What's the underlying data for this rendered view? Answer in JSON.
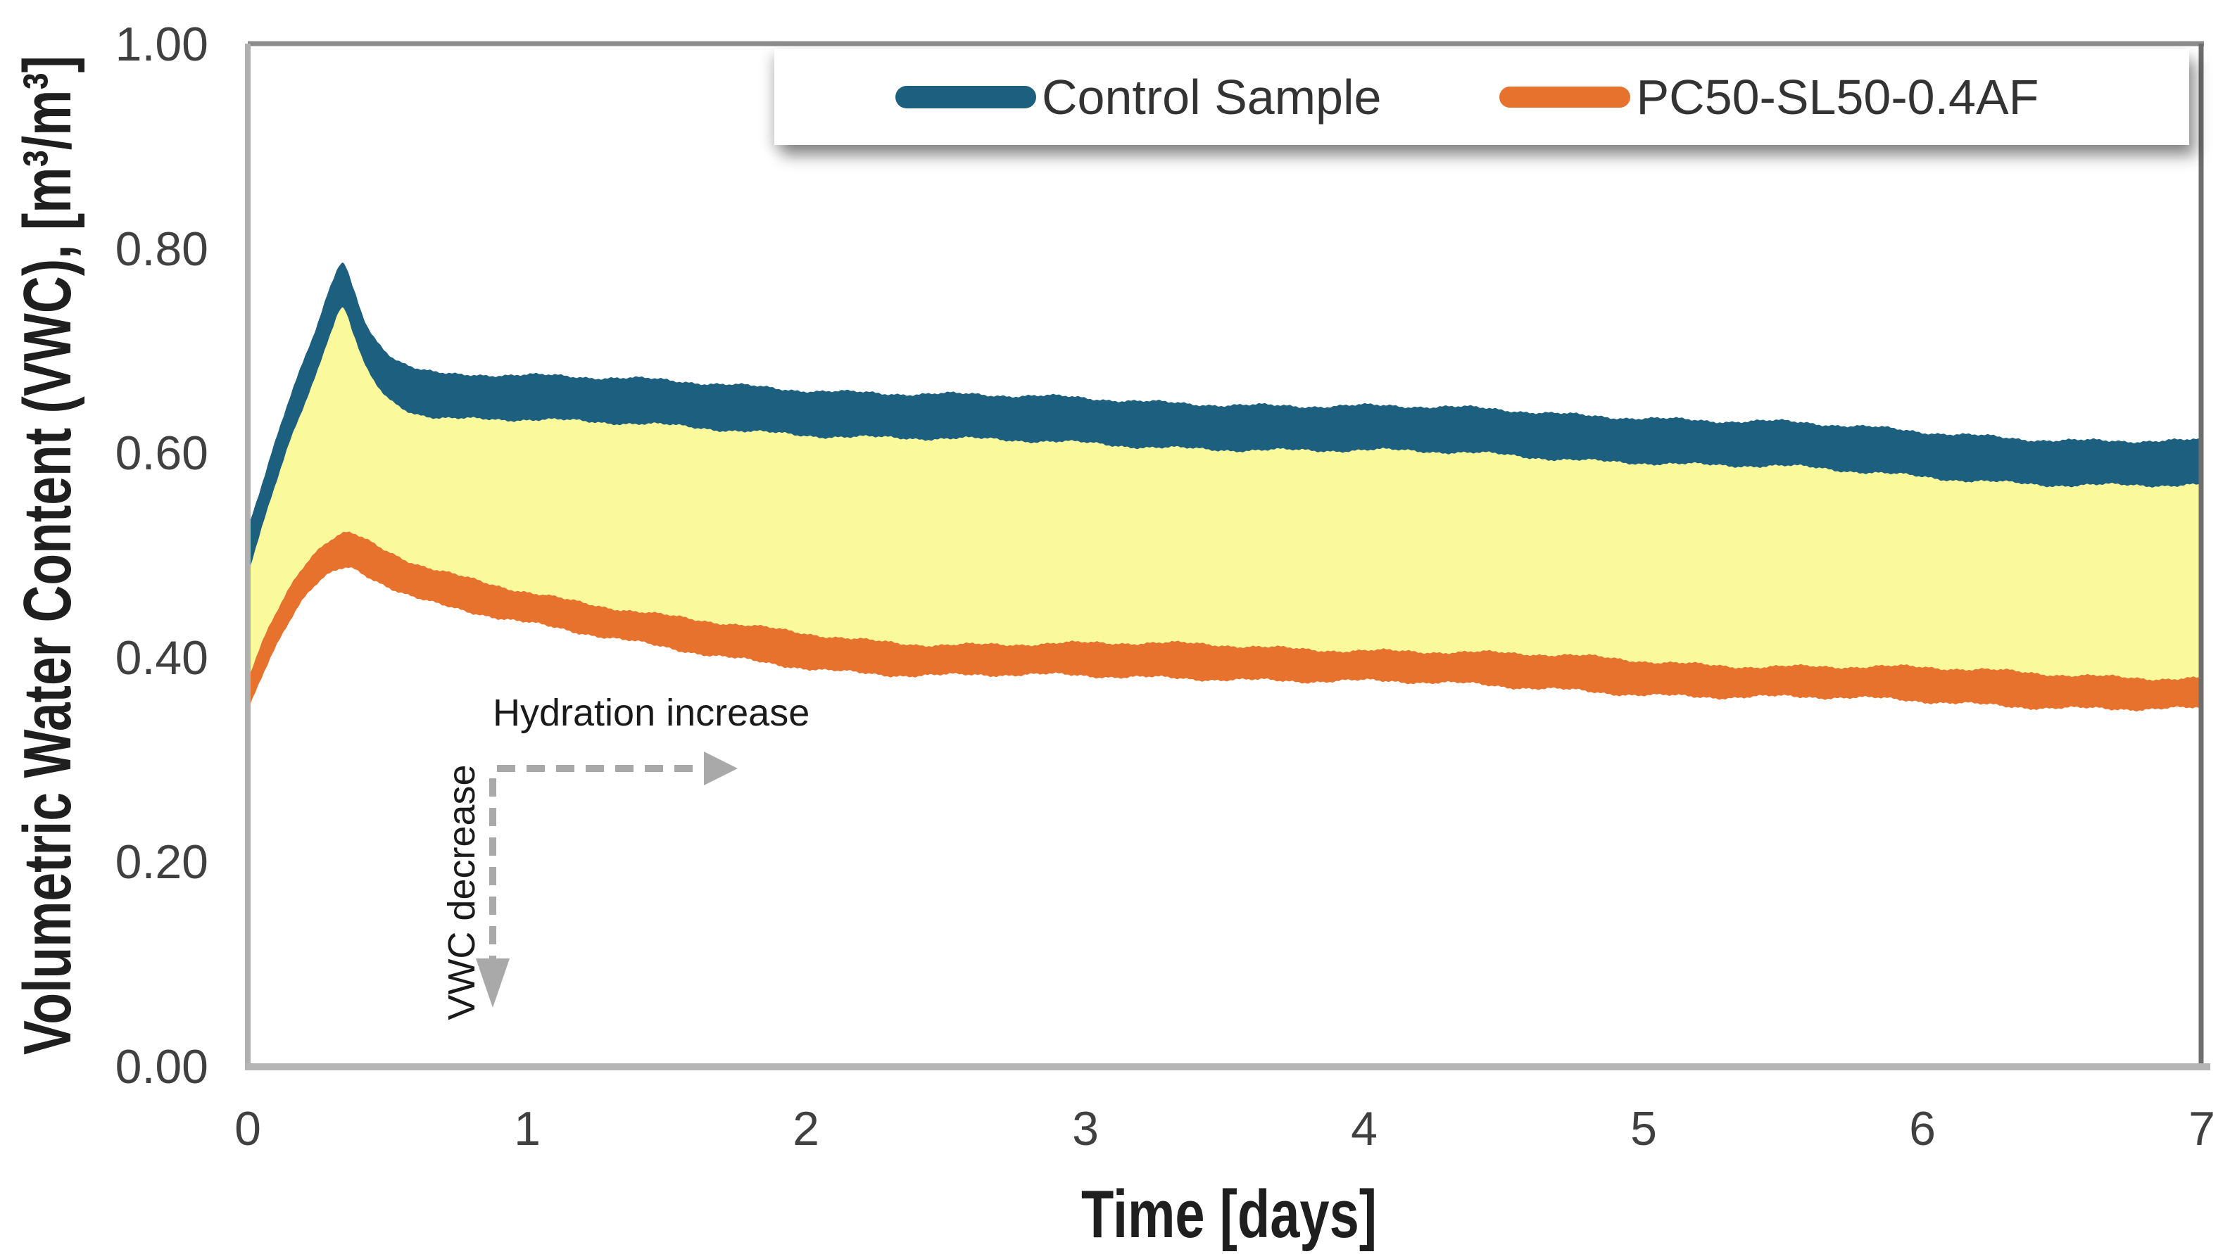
{
  "chart_data": {
    "type": "line",
    "title": "",
    "xlabel": "Time [days]",
    "ylabel": "Volumetric Water Content (VWC), [m³/m³]",
    "xlim": [
      0,
      7
    ],
    "ylim": [
      0.0,
      1.0
    ],
    "grid": false,
    "legend_position": "top",
    "xtick_labels": [
      "0",
      "1",
      "2",
      "3",
      "4",
      "5",
      "6",
      "7"
    ],
    "ytick_labels": [
      "0.00",
      "0.20",
      "0.40",
      "0.60",
      "0.80",
      "1.00"
    ],
    "fill_between": {
      "description": "yellow shaded region between Control Sample and PC50-SL50-0.4AF curves",
      "color": "#FAF99C"
    },
    "series": [
      {
        "name": "Control Sample",
        "color": "#1D5F7F",
        "band_thickness_vwc": 0.044,
        "points": [
          [
            0.0,
            0.5
          ],
          [
            0.05,
            0.545
          ],
          [
            0.1,
            0.59
          ],
          [
            0.15,
            0.632
          ],
          [
            0.2,
            0.668
          ],
          [
            0.25,
            0.703
          ],
          [
            0.3,
            0.742
          ],
          [
            0.34,
            0.763
          ],
          [
            0.38,
            0.737
          ],
          [
            0.42,
            0.708
          ],
          [
            0.46,
            0.69
          ],
          [
            0.52,
            0.674
          ],
          [
            0.6,
            0.663
          ],
          [
            0.7,
            0.657
          ],
          [
            0.85,
            0.656
          ],
          [
            1.0,
            0.654
          ],
          [
            1.25,
            0.65
          ],
          [
            1.5,
            0.647
          ],
          [
            1.75,
            0.644
          ],
          [
            2.0,
            0.641
          ],
          [
            2.25,
            0.638
          ],
          [
            2.5,
            0.635
          ],
          [
            2.75,
            0.632
          ],
          [
            3.0,
            0.63
          ],
          [
            3.25,
            0.628
          ],
          [
            3.5,
            0.627
          ],
          [
            3.75,
            0.625
          ],
          [
            4.0,
            0.623
          ],
          [
            4.25,
            0.621
          ],
          [
            4.5,
            0.619
          ],
          [
            4.75,
            0.616
          ],
          [
            5.0,
            0.614
          ],
          [
            5.25,
            0.61
          ],
          [
            5.5,
            0.607
          ],
          [
            5.75,
            0.602
          ],
          [
            6.0,
            0.598
          ],
          [
            6.25,
            0.595
          ],
          [
            6.5,
            0.592
          ],
          [
            6.75,
            0.59
          ],
          [
            7.0,
            0.588
          ]
        ]
      },
      {
        "name": "PC50-SL50-0.4AF",
        "color": "#E6722E",
        "band_thickness_vwc": 0.032,
        "points": [
          [
            0.0,
            0.36
          ],
          [
            0.05,
            0.395
          ],
          [
            0.1,
            0.425
          ],
          [
            0.15,
            0.451
          ],
          [
            0.2,
            0.472
          ],
          [
            0.25,
            0.487
          ],
          [
            0.3,
            0.497
          ],
          [
            0.36,
            0.503
          ],
          [
            0.42,
            0.497
          ],
          [
            0.5,
            0.487
          ],
          [
            0.6,
            0.476
          ],
          [
            0.7,
            0.468
          ],
          [
            0.85,
            0.459
          ],
          [
            1.0,
            0.45
          ],
          [
            1.15,
            0.441
          ],
          [
            1.3,
            0.433
          ],
          [
            1.5,
            0.423
          ],
          [
            1.75,
            0.414
          ],
          [
            2.0,
            0.407
          ],
          [
            2.25,
            0.401
          ],
          [
            2.5,
            0.398
          ],
          [
            2.75,
            0.397
          ],
          [
            3.0,
            0.396
          ],
          [
            3.25,
            0.396
          ],
          [
            3.5,
            0.396
          ],
          [
            3.75,
            0.394
          ],
          [
            4.0,
            0.392
          ],
          [
            4.25,
            0.389
          ],
          [
            4.5,
            0.386
          ],
          [
            4.75,
            0.384
          ],
          [
            5.0,
            0.381
          ],
          [
            5.25,
            0.378
          ],
          [
            5.5,
            0.376
          ],
          [
            5.75,
            0.374
          ],
          [
            6.0,
            0.372
          ],
          [
            6.25,
            0.37
          ],
          [
            6.5,
            0.368
          ],
          [
            6.75,
            0.366
          ],
          [
            7.0,
            0.364
          ]
        ]
      }
    ],
    "annotations": [
      {
        "text": "Hydration increase",
        "direction": "right"
      },
      {
        "text": "VWC decrease",
        "direction": "down"
      }
    ]
  },
  "legend": {
    "entries": [
      {
        "label": "Control Sample",
        "color": "#1D5F7F"
      },
      {
        "label": "PC50-SL50-0.4AF",
        "color": "#E6722E"
      }
    ]
  },
  "colors": {
    "control_series": "#1D5F7F",
    "pc50_series": "#E6722E",
    "fill_between": "#FAF99C",
    "frame_top": "#8C8C8C",
    "frame_left": "#B0B0B0",
    "frame_bottom": "#B5B5B5",
    "frame_right": "#6E6E6E",
    "tick_text": "#404040",
    "axis_title_text": "#1F1F1F",
    "legend_text": "#333333",
    "annotation_text": "#1A1A1A",
    "annotation_arrow": "#A9A9A9",
    "legend_background": "#FFFFFF"
  }
}
